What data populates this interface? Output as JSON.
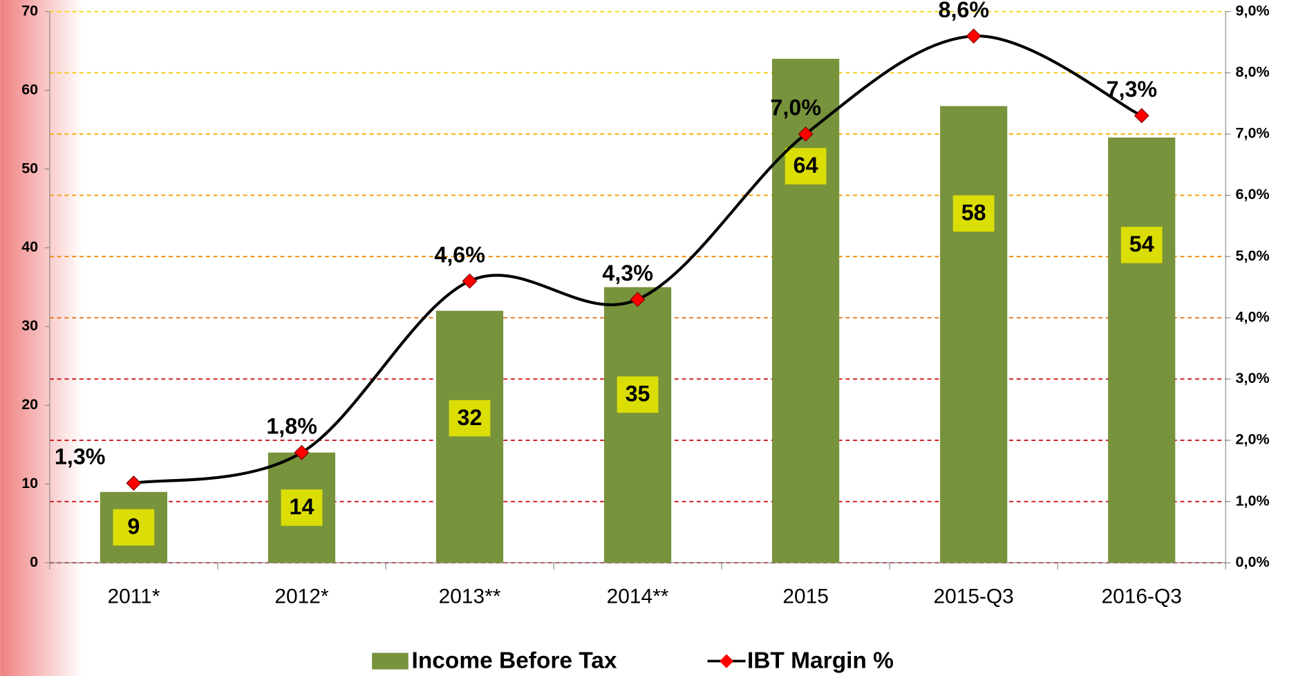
{
  "chart_data": {
    "type": "bar",
    "categories": [
      "2011*",
      "2012*",
      "2013**",
      "2014**",
      "2015",
      "2015-Q3",
      "2016-Q3"
    ],
    "series": [
      {
        "name": "Income Before Tax",
        "type": "bar",
        "color": "#77933c",
        "label_box_color": "#e5e600",
        "values": [
          9,
          14,
          32,
          35,
          64,
          58,
          54
        ]
      },
      {
        "name": "IBT Margin %",
        "type": "line",
        "axis": "y2",
        "color": "#000000",
        "marker_color": "#ff0000",
        "values": [
          1.3,
          1.8,
          4.6,
          4.3,
          7.0,
          8.6,
          7.3
        ],
        "value_labels": [
          "1,3%",
          "1,8%",
          "4,6%",
          "4,3%",
          "7,0%",
          "8,6%",
          "7,3%"
        ]
      }
    ],
    "ylim": [
      0,
      70
    ],
    "yticks": [
      0,
      10,
      20,
      30,
      40,
      50,
      60,
      70
    ],
    "y2lim": [
      0,
      9
    ],
    "y2ticks": [
      {
        "value": 0,
        "label": "0,0%"
      },
      {
        "value": 1,
        "label": "1,0%"
      },
      {
        "value": 2,
        "label": "2,0%"
      },
      {
        "value": 3,
        "label": "3,0%"
      },
      {
        "value": 4,
        "label": "4,0%"
      },
      {
        "value": 5,
        "label": "5,0%"
      },
      {
        "value": 6,
        "label": "6,0%"
      },
      {
        "value": 7,
        "label": "7,0%"
      },
      {
        "value": 8,
        "label": "8,0%"
      },
      {
        "value": 9,
        "label": "9,0%"
      }
    ],
    "grid": true,
    "grid_colors": [
      "#cc0000",
      "#cc0000",
      "#cc0000",
      "#cc0000",
      "#e46c0a",
      "#f08a00",
      "#f5a000",
      "#f5b000",
      "#f5c800",
      "#f5d800"
    ],
    "legend": "bottom"
  }
}
